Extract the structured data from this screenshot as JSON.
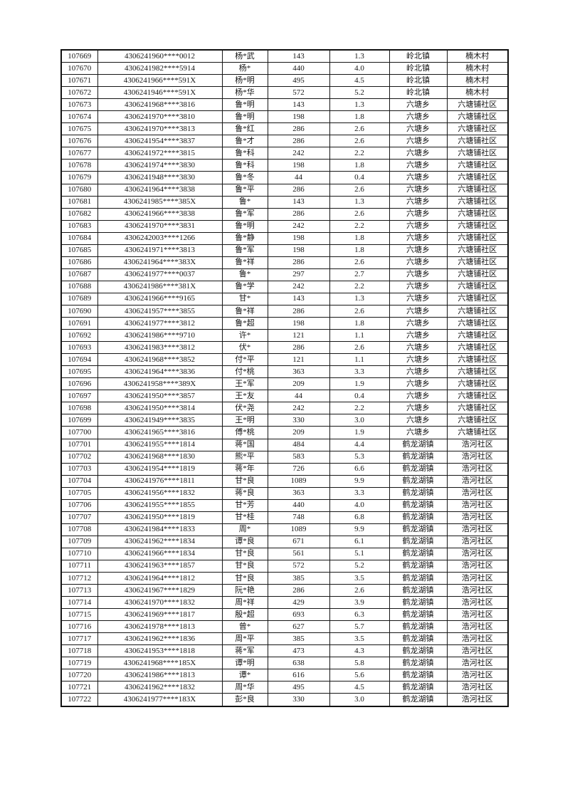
{
  "page": {
    "background_color": "#ffffff",
    "text_color": "#141414",
    "border_color": "#161616",
    "description": "masked-personal-list-table-page"
  },
  "table": {
    "has_header_row": false,
    "columns": [
      {
        "key": "seq",
        "name": "sequence-number-cell"
      },
      {
        "key": "id",
        "name": "masked-id-number-cell"
      },
      {
        "key": "name",
        "name": "masked-name-cell"
      },
      {
        "key": "amount",
        "name": "amount-cell"
      },
      {
        "key": "rate",
        "name": "rate-cell"
      },
      {
        "key": "town",
        "name": "township-cell"
      },
      {
        "key": "village",
        "name": "village-cell"
      }
    ],
    "rows": [
      [
        "107669",
        "4306241960****0012",
        "杨*武",
        "143",
        "1.3",
        "岭北镇",
        "楠木村"
      ],
      [
        "107670",
        "4306241982****5914",
        "杨*",
        "440",
        "4.0",
        "岭北镇",
        "楠木村"
      ],
      [
        "107671",
        "4306241966****591X",
        "杨*明",
        "495",
        "4.5",
        "岭北镇",
        "楠木村"
      ],
      [
        "107672",
        "4306241946****591X",
        "杨*华",
        "572",
        "5.2",
        "岭北镇",
        "楠木村"
      ],
      [
        "107673",
        "4306241968****3816",
        "鲁*明",
        "143",
        "1.3",
        "六塘乡",
        "六塘铺社区"
      ],
      [
        "107674",
        "4306241970****3810",
        "鲁*明",
        "198",
        "1.8",
        "六塘乡",
        "六塘铺社区"
      ],
      [
        "107675",
        "4306241970****3813",
        "鲁*红",
        "286",
        "2.6",
        "六塘乡",
        "六塘铺社区"
      ],
      [
        "107676",
        "4306241954****3837",
        "鲁*才",
        "286",
        "2.6",
        "六塘乡",
        "六塘铺社区"
      ],
      [
        "107677",
        "4306241972****3815",
        "鲁*科",
        "242",
        "2.2",
        "六塘乡",
        "六塘铺社区"
      ],
      [
        "107678",
        "4306241974****3830",
        "鲁*科",
        "198",
        "1.8",
        "六塘乡",
        "六塘铺社区"
      ],
      [
        "107679",
        "4306241948****3830",
        "鲁*冬",
        "44",
        "0.4",
        "六塘乡",
        "六塘铺社区"
      ],
      [
        "107680",
        "4306241964****3838",
        "鲁*平",
        "286",
        "2.6",
        "六塘乡",
        "六塘铺社区"
      ],
      [
        "107681",
        "4306241985****385X",
        "鲁*",
        "143",
        "1.3",
        "六塘乡",
        "六塘铺社区"
      ],
      [
        "107682",
        "4306241966****3838",
        "鲁*军",
        "286",
        "2.6",
        "六塘乡",
        "六塘铺社区"
      ],
      [
        "107683",
        "4306241970****3831",
        "鲁*明",
        "242",
        "2.2",
        "六塘乡",
        "六塘铺社区"
      ],
      [
        "107684",
        "4306242003****1266",
        "鲁*静",
        "198",
        "1.8",
        "六塘乡",
        "六塘铺社区"
      ],
      [
        "107685",
        "4306241971****3813",
        "鲁*军",
        "198",
        "1.8",
        "六塘乡",
        "六塘铺社区"
      ],
      [
        "107686",
        "4306241964****383X",
        "鲁*祥",
        "286",
        "2.6",
        "六塘乡",
        "六塘铺社区"
      ],
      [
        "107687",
        "4306241977****0037",
        "鲁*",
        "297",
        "2.7",
        "六塘乡",
        "六塘铺社区"
      ],
      [
        "107688",
        "4306241986****381X",
        "鲁*学",
        "242",
        "2.2",
        "六塘乡",
        "六塘铺社区"
      ],
      [
        "107689",
        "4306241966****9165",
        "甘*",
        "143",
        "1.3",
        "六塘乡",
        "六塘铺社区"
      ],
      [
        "107690",
        "4306241957****3855",
        "鲁*祥",
        "286",
        "2.6",
        "六塘乡",
        "六塘铺社区"
      ],
      [
        "107691",
        "4306241977****3812",
        "鲁*超",
        "198",
        "1.8",
        "六塘乡",
        "六塘铺社区"
      ],
      [
        "107692",
        "4306241986****9710",
        "许*",
        "121",
        "1.1",
        "六塘乡",
        "六塘铺社区"
      ],
      [
        "107693",
        "4306241983****3812",
        "伏*",
        "286",
        "2.6",
        "六塘乡",
        "六塘铺社区"
      ],
      [
        "107694",
        "4306241968****3852",
        "付*平",
        "121",
        "1.1",
        "六塘乡",
        "六塘铺社区"
      ],
      [
        "107695",
        "4306241964****3836",
        "付*桃",
        "363",
        "3.3",
        "六塘乡",
        "六塘铺社区"
      ],
      [
        "107696",
        "4306241958****389X",
        "王*军",
        "209",
        "1.9",
        "六塘乡",
        "六塘铺社区"
      ],
      [
        "107697",
        "4306241950****3857",
        "王*友",
        "44",
        "0.4",
        "六塘乡",
        "六塘铺社区"
      ],
      [
        "107698",
        "4306241950****3814",
        "伏*尧",
        "242",
        "2.2",
        "六塘乡",
        "六塘铺社区"
      ],
      [
        "107699",
        "4306241949****3835",
        "王*明",
        "330",
        "3.0",
        "六塘乡",
        "六塘铺社区"
      ],
      [
        "107700",
        "4306241965****3816",
        "傅*桃",
        "209",
        "1.9",
        "六塘乡",
        "六塘铺社区"
      ],
      [
        "107701",
        "4306241955****1814",
        "蒋*国",
        "484",
        "4.4",
        "鹤龙湖镇",
        "浩河社区"
      ],
      [
        "107702",
        "4306241968****1830",
        "熊*平",
        "583",
        "5.3",
        "鹤龙湖镇",
        "浩河社区"
      ],
      [
        "107703",
        "4306241954****1819",
        "蒋*年",
        "726",
        "6.6",
        "鹤龙湖镇",
        "浩河社区"
      ],
      [
        "107704",
        "4306241976****1811",
        "甘*良",
        "1089",
        "9.9",
        "鹤龙湖镇",
        "浩河社区"
      ],
      [
        "107705",
        "4306241956****1832",
        "蒋*良",
        "363",
        "3.3",
        "鹤龙湖镇",
        "浩河社区"
      ],
      [
        "107706",
        "4306241955****1855",
        "甘*芳",
        "440",
        "4.0",
        "鹤龙湖镇",
        "浩河社区"
      ],
      [
        "107707",
        "4306241950****1819",
        "甘*桂",
        "748",
        "6.8",
        "鹤龙湖镇",
        "浩河社区"
      ],
      [
        "107708",
        "4306241984****1833",
        "周*",
        "1089",
        "9.9",
        "鹤龙湖镇",
        "浩河社区"
      ],
      [
        "107709",
        "4306241962****1834",
        "谭*良",
        "671",
        "6.1",
        "鹤龙湖镇",
        "浩河社区"
      ],
      [
        "107710",
        "4306241966****1834",
        "甘*良",
        "561",
        "5.1",
        "鹤龙湖镇",
        "浩河社区"
      ],
      [
        "107711",
        "4306241963****1857",
        "甘*良",
        "572",
        "5.2",
        "鹤龙湖镇",
        "浩河社区"
      ],
      [
        "107712",
        "4306241964****1812",
        "甘*良",
        "385",
        "3.5",
        "鹤龙湖镇",
        "浩河社区"
      ],
      [
        "107713",
        "4306241967****1829",
        "阮*艳",
        "286",
        "2.6",
        "鹤龙湖镇",
        "浩河社区"
      ],
      [
        "107714",
        "4306241970****1832",
        "周*祥",
        "429",
        "3.9",
        "鹤龙湖镇",
        "浩河社区"
      ],
      [
        "107715",
        "4306241969****1817",
        "殷*超",
        "693",
        "6.3",
        "鹤龙湖镇",
        "浩河社区"
      ],
      [
        "107716",
        "4306241978****1813",
        "曾*",
        "627",
        "5.7",
        "鹤龙湖镇",
        "浩河社区"
      ],
      [
        "107717",
        "4306241962****1836",
        "周*平",
        "385",
        "3.5",
        "鹤龙湖镇",
        "浩河社区"
      ],
      [
        "107718",
        "4306241953****1818",
        "蒋*军",
        "473",
        "4.3",
        "鹤龙湖镇",
        "浩河社区"
      ],
      [
        "107719",
        "4306241968****185X",
        "谭*明",
        "638",
        "5.8",
        "鹤龙湖镇",
        "浩河社区"
      ],
      [
        "107720",
        "4306241986****1813",
        "谭*",
        "616",
        "5.6",
        "鹤龙湖镇",
        "浩河社区"
      ],
      [
        "107721",
        "4306241962****1832",
        "周*华",
        "495",
        "4.5",
        "鹤龙湖镇",
        "浩河社区"
      ],
      [
        "107722",
        "4306241977****183X",
        "彭*良",
        "330",
        "3.0",
        "鹤龙湖镇",
        "浩河社区"
      ]
    ]
  }
}
